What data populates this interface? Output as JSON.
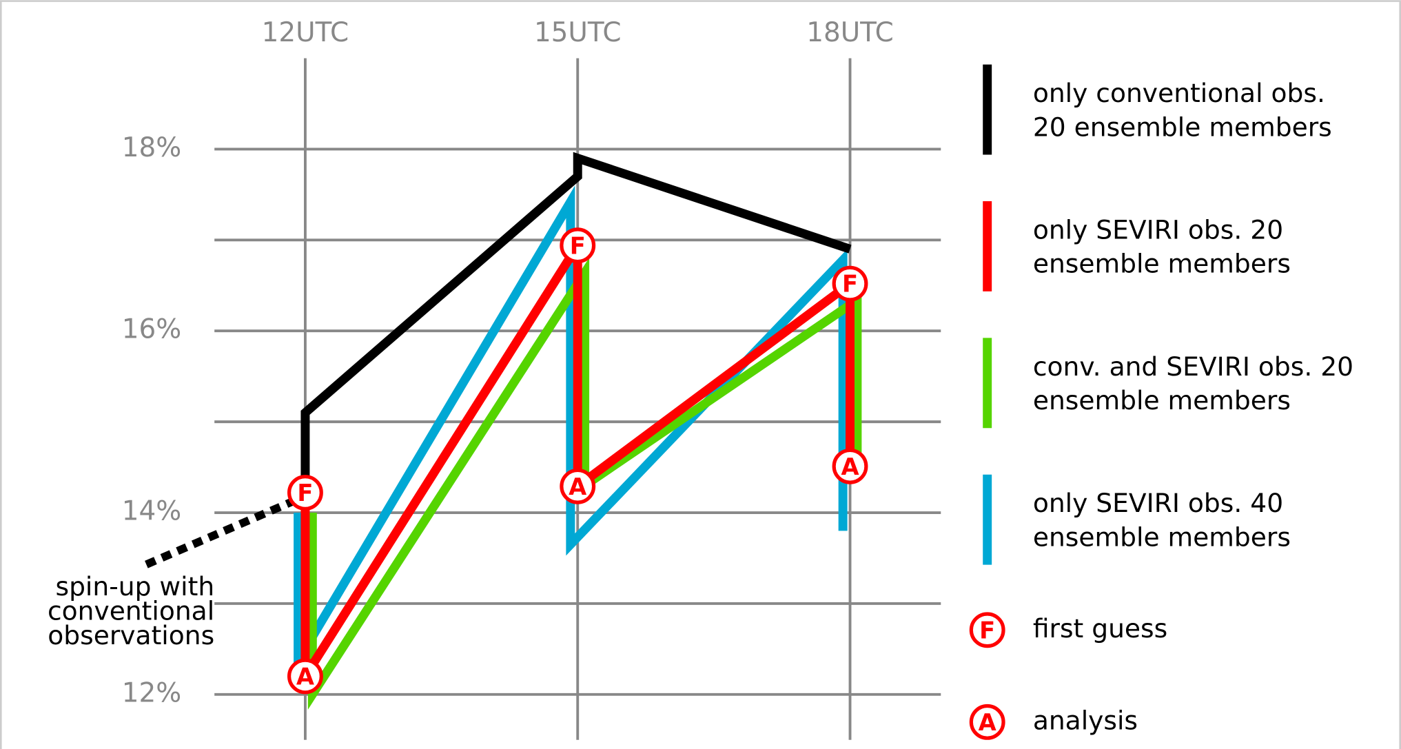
{
  "chart_data": {
    "type": "line",
    "xlim": [
      11,
      19
    ],
    "xticks": [
      {
        "value": 12,
        "label": "12UTC"
      },
      {
        "value": 15,
        "label": "15UTC"
      },
      {
        "value": 18,
        "label": "18UTC"
      }
    ],
    "ylim": [
      11.5,
      19
    ],
    "yticks": [
      {
        "value": 12,
        "label": "12%"
      },
      {
        "value": 14,
        "label": "14%"
      },
      {
        "value": 16,
        "label": "16%"
      },
      {
        "value": 18,
        "label": "18%"
      }
    ],
    "yminor": [
      13,
      15,
      17
    ],
    "grid": true,
    "legend": "right",
    "series": [
      {
        "name": "only conventional obs. 20 ensemble members",
        "color": "#000000",
        "x": [
          12,
          12,
          15,
          15,
          18
        ],
        "values": [
          14.22,
          15.1,
          17.7,
          17.9,
          16.9
        ]
      },
      {
        "name": "only SEVIRI obs. 20 ensemble members",
        "color": "#ff0000",
        "markers": true,
        "x": [
          12,
          12,
          15,
          15,
          18,
          18
        ],
        "values": [
          14.22,
          12.2,
          16.94,
          14.29,
          16.52,
          14.51
        ]
      },
      {
        "name": "conv. and SEVIRI obs. 20 ensemble members",
        "color": "#55d400",
        "x": [
          12,
          12,
          15,
          15,
          18,
          18
        ],
        "values": [
          14.0,
          12.0,
          16.64,
          14.3,
          16.34,
          14.58
        ]
      },
      {
        "name": "only SEVIRI obs. 40 ensemble members",
        "color": "#00a8d4",
        "x": [
          12,
          12,
          15,
          15,
          18,
          18
        ],
        "values": [
          14.0,
          12.37,
          17.42,
          13.65,
          16.78,
          13.8
        ]
      }
    ],
    "spin_up": {
      "color": "#000000",
      "x": [
        10.25,
        11.9
      ],
      "values": [
        13.43,
        14.14
      ],
      "annotation": [
        "spin-up with",
        "conventional",
        "observations"
      ]
    },
    "marker_legend": [
      {
        "symbol": "F",
        "label": "first guess"
      },
      {
        "symbol": "A",
        "label": "analysis"
      }
    ]
  }
}
